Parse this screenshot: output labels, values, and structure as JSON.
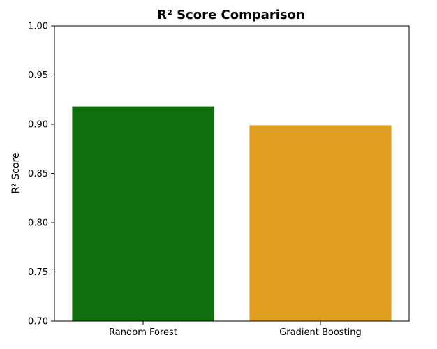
{
  "chart_data": {
    "type": "bar",
    "title": "R² Score Comparison",
    "xlabel": "",
    "ylabel": "R² Score",
    "categories": [
      "Random Forest",
      "Gradient Boosting"
    ],
    "values": [
      0.918,
      0.899
    ],
    "colors": [
      "#107010",
      "#e09e20"
    ],
    "ylim": [
      0.7,
      1.0
    ],
    "yticks": [
      "0.70",
      "0.75",
      "0.80",
      "0.85",
      "0.90",
      "0.95",
      "1.00"
    ],
    "grid": false,
    "legend": "none"
  }
}
